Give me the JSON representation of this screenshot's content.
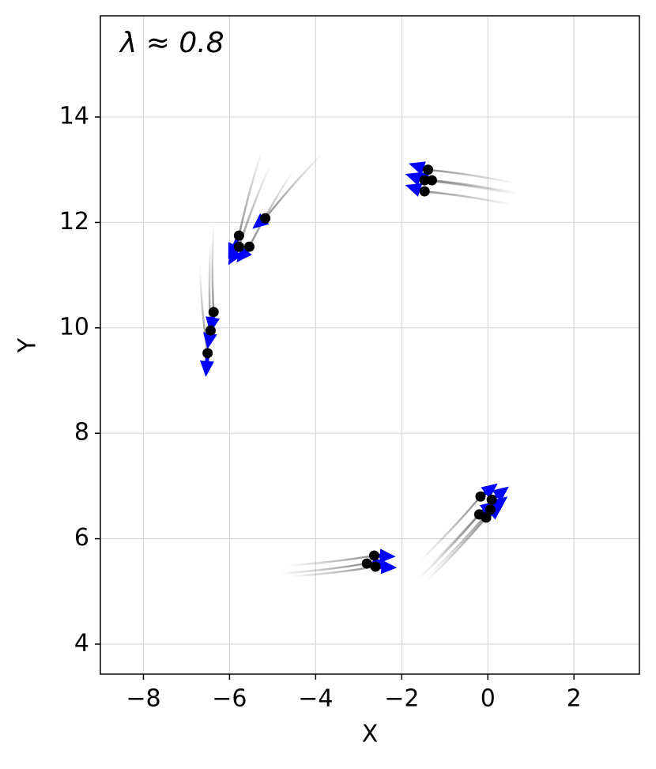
{
  "chart_data": {
    "type": "quiver",
    "annotation": "λ ≈ 0.8",
    "x_label": "X",
    "y_label": "Y",
    "xlim": [
      -9.0,
      3.52
    ],
    "ylim": [
      3.43,
      15.92
    ],
    "xticks": [
      {
        "value": -8,
        "label": "−8"
      },
      {
        "value": -6,
        "label": "−6"
      },
      {
        "value": -4,
        "label": "−4"
      },
      {
        "value": -2,
        "label": "−2"
      },
      0,
      2
    ],
    "yticks": [
      4,
      6,
      8,
      10,
      12,
      14
    ],
    "grid": true,
    "point_color": "#000000",
    "arrow_color": "#0000ff",
    "trail_color": "#808080",
    "series": [
      {
        "x": [
          -5.17,
          -5.78,
          -5.78,
          -5.54,
          -6.37,
          -6.44,
          -6.51,
          -1.39,
          -1.47,
          -1.3,
          -1.47,
          -0.17,
          0.09,
          -0.2,
          -0.04,
          0.06,
          -2.64,
          -2.81,
          -2.61
        ],
        "y": [
          12.08,
          11.75,
          11.54,
          11.54,
          10.3,
          9.95,
          9.52,
          13.0,
          12.8,
          12.8,
          12.59,
          6.8,
          6.74,
          6.46,
          6.4,
          6.55,
          5.68,
          5.53,
          5.47
        ],
        "u": [
          -0.3,
          -0.25,
          -0.25,
          -0.3,
          -0.08,
          -0.07,
          -0.04,
          -0.45,
          -0.45,
          -0.45,
          -0.45,
          0.4,
          0.4,
          0.4,
          0.4,
          0.4,
          0.5,
          0.5,
          0.5
        ],
        "v": [
          -0.2,
          -0.45,
          -0.35,
          -0.3,
          -0.4,
          -0.35,
          -0.45,
          0.12,
          0.12,
          0.12,
          0.12,
          0.25,
          0.25,
          0.25,
          0.25,
          0.25,
          -0.02,
          -0.02,
          -0.02
        ]
      }
    ]
  }
}
